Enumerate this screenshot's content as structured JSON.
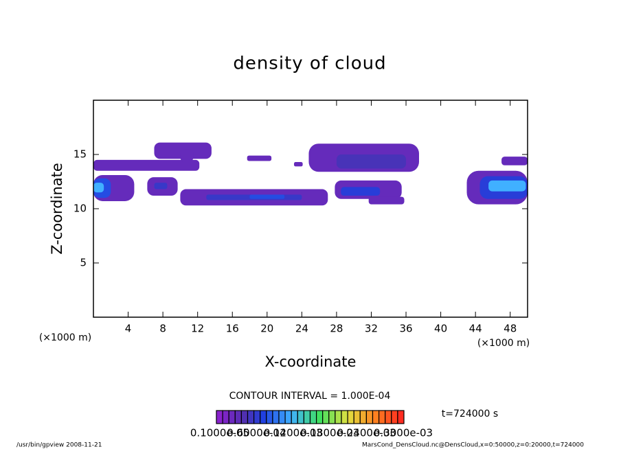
{
  "chart_data": {
    "type": "contour",
    "title": "density of cloud",
    "x_label": "X-coordinate",
    "y_label": "Z-coordinate",
    "x_unit": "(×1000 m)",
    "y_unit": "(×1000 m)",
    "xlim": [
      0,
      50
    ],
    "ylim": [
      0,
      20
    ],
    "xticks": [
      4,
      8,
      12,
      16,
      20,
      24,
      28,
      32,
      36,
      40,
      44,
      48
    ],
    "yticks": [
      5,
      10,
      15
    ],
    "clim": [
      0,
      0.0003
    ],
    "contour_note": "CONTOUR INTERVAL = 1.000E-04",
    "time_label": "t=724000 s",
    "colorbar_labels": [
      "0.1000e-05",
      "0.6000e-04",
      "0.1200e-03",
      "0.1800e-03",
      "0.2400e-03",
      "0.3000e-03"
    ],
    "footer_left": "/usr/bin/gpview   2008-11-21",
    "footer_right": "MarsCond_DensCloud.nc@DensCloud,x=0:50000,z=0:20000,t=724000",
    "patches": [
      {
        "x": [
          0,
          12.2
        ],
        "z": [
          13.5,
          14.5
        ],
        "value": 3e-05
      },
      {
        "x": [
          7,
          13.6
        ],
        "z": [
          14.6,
          16.1
        ],
        "value": 3e-05
      },
      {
        "x": [
          10,
          11.5
        ],
        "z": [
          14.3,
          15.5
        ],
        "value": 3e-05
      },
      {
        "x": [
          0,
          4.7
        ],
        "z": [
          10.7,
          13.1
        ],
        "value": 3e-05
      },
      {
        "x": [
          0,
          2
        ],
        "z": [
          11,
          12.8
        ],
        "value": 8e-05
      },
      {
        "x": [
          0,
          1.2
        ],
        "z": [
          11.5,
          12.4
        ],
        "value": 0.00012
      },
      {
        "x": [
          6.2,
          9.7
        ],
        "z": [
          11.2,
          12.9
        ],
        "value": 3e-05
      },
      {
        "x": [
          7,
          8.5
        ],
        "z": [
          11.8,
          12.4
        ],
        "value": 6e-05
      },
      {
        "x": [
          10,
          27
        ],
        "z": [
          10.3,
          11.8
        ],
        "value": 3e-05
      },
      {
        "x": [
          13,
          24
        ],
        "z": [
          10.8,
          11.3
        ],
        "value": 6e-05
      },
      {
        "x": [
          18,
          22
        ],
        "z": [
          10.9,
          11.3
        ],
        "value": 8e-05
      },
      {
        "x": [
          17.7,
          20.5
        ],
        "z": [
          14.4,
          14.9
        ],
        "value": 3e-05
      },
      {
        "x": [
          23.1,
          24.1
        ],
        "z": [
          13.9,
          14.3
        ],
        "value": 3e-05
      },
      {
        "x": [
          24.8,
          37.5
        ],
        "z": [
          13.4,
          16
        ],
        "value": 3e-05
      },
      {
        "x": [
          28,
          36
        ],
        "z": [
          13.7,
          15
        ],
        "value": 5e-05
      },
      {
        "x": [
          27.8,
          35.5
        ],
        "z": [
          10.9,
          12.6
        ],
        "value": 3e-05
      },
      {
        "x": [
          28.5,
          33
        ],
        "z": [
          11.2,
          12
        ],
        "value": 7e-05
      },
      {
        "x": [
          31.7,
          35.8
        ],
        "z": [
          10.4,
          11.1
        ],
        "value": 3e-05
      },
      {
        "x": [
          43,
          50
        ],
        "z": [
          10.4,
          13.5
        ],
        "value": 3e-05
      },
      {
        "x": [
          44.5,
          50
        ],
        "z": [
          10.9,
          13
        ],
        "value": 7e-05
      },
      {
        "x": [
          45.5,
          49.8
        ],
        "z": [
          11.6,
          12.6
        ],
        "value": 0.00012
      },
      {
        "x": [
          47,
          50
        ],
        "z": [
          14,
          14.8
        ],
        "value": 3e-05
      }
    ]
  }
}
